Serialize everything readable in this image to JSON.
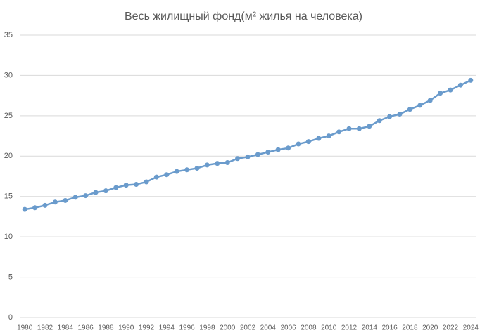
{
  "chart_data": {
    "type": "line",
    "title": "Весь жилищный фонд(м² жилья на человека)",
    "categories": [
      "1980",
      null,
      "1982",
      null,
      "1984",
      null,
      "1986",
      null,
      "1988",
      null,
      "1990",
      null,
      "1992",
      null,
      "1994",
      null,
      "1996",
      null,
      "1998",
      null,
      "2000",
      null,
      "2002",
      null,
      "2004",
      null,
      "2006",
      null,
      "2008",
      null,
      "2010",
      null,
      "2012",
      null,
      "2014",
      null,
      "2016",
      null,
      "2018",
      null,
      "2020",
      null,
      "2022",
      null,
      "2024"
    ],
    "values": [
      13.4,
      13.6,
      13.9,
      14.3,
      14.5,
      14.9,
      15.1,
      15.5,
      15.7,
      16.1,
      16.4,
      16.5,
      16.8,
      17.4,
      17.7,
      18.1,
      18.3,
      18.5,
      18.9,
      19.1,
      19.2,
      19.7,
      19.9,
      20.2,
      20.5,
      20.8,
      21.0,
      21.5,
      21.8,
      22.2,
      22.5,
      23.0,
      23.4,
      23.4,
      23.7,
      24.4,
      24.9,
      25.2,
      25.8,
      26.3,
      26.9,
      27.8,
      28.2,
      28.8,
      29.4
    ],
    "color": "#6a9bcc",
    "ylim": [
      0,
      35
    ],
    "yticks": [
      0,
      5,
      10,
      15,
      20,
      25,
      30,
      35
    ],
    "grid": true
  }
}
